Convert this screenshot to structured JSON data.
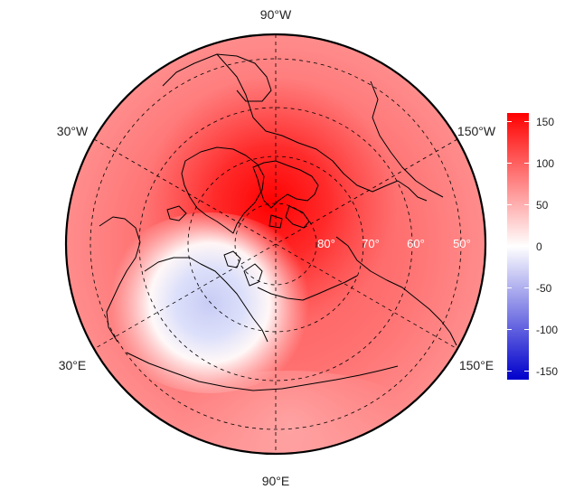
{
  "map": {
    "projection": "north-polar-stereographic",
    "longitude_labels": {
      "top": "90°W",
      "upper_left": "30°W",
      "upper_right": "150°W",
      "lower_left": "30°E",
      "lower_right": "150°E",
      "bottom": "90°E"
    },
    "latitude_labels": [
      "80°",
      "70°",
      "60°",
      "50°"
    ],
    "colors": {
      "max": "#ff0000",
      "mid": "#ffffff",
      "min": "#0000cc",
      "coastline": "#000000",
      "graticule": "#000000"
    }
  },
  "colorbar": {
    "min": -160,
    "max": 160,
    "ticks": [
      "150",
      "100",
      "50",
      "0",
      "-50",
      "-100",
      "-150"
    ]
  }
}
